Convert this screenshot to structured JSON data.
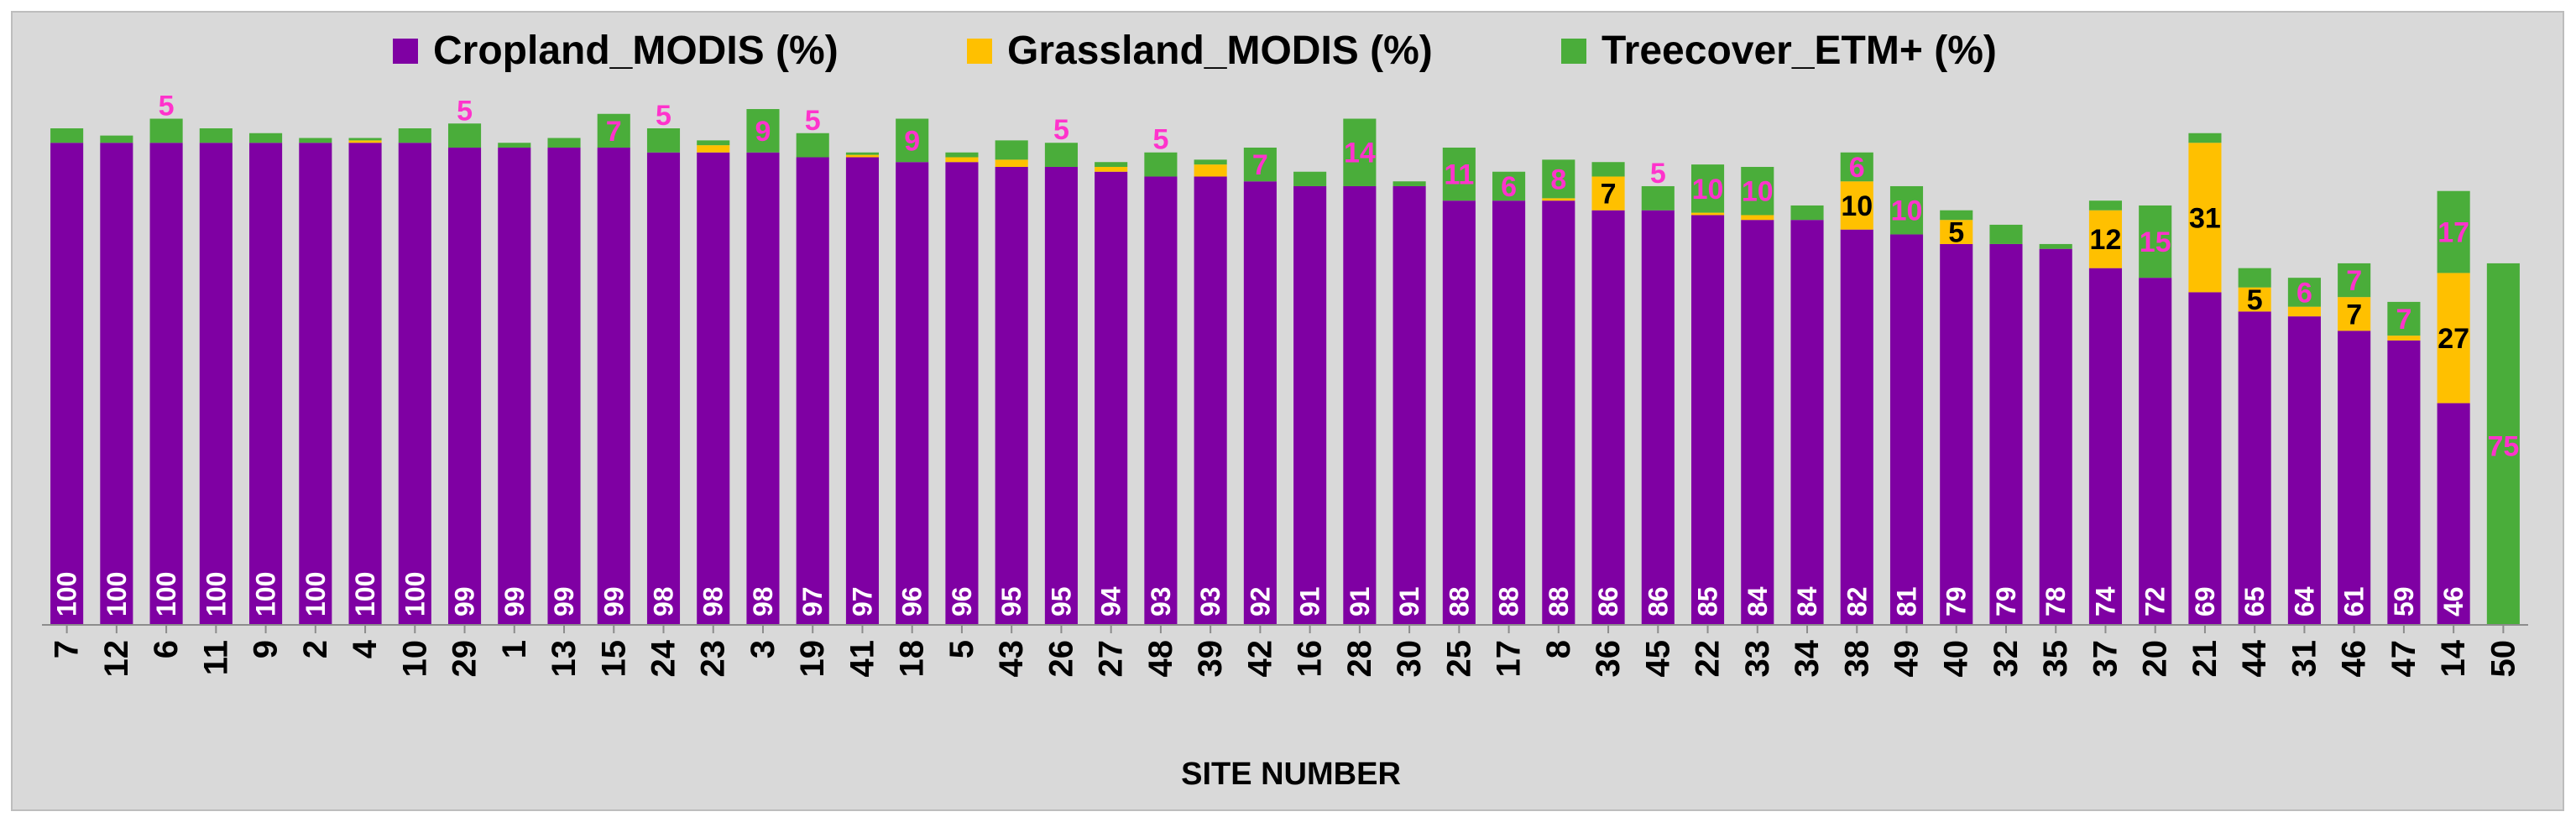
{
  "chart_data": {
    "type": "bar",
    "stacked": true,
    "title": "",
    "xlabel": "SITE NUMBER",
    "ylabel": "",
    "ylim": [
      0,
      103
    ],
    "grid": false,
    "legend_position": "top",
    "categories": [
      "7",
      "12",
      "6",
      "11",
      "9",
      "2",
      "4",
      "10",
      "29",
      "1",
      "13",
      "15",
      "24",
      "23",
      "3",
      "19",
      "41",
      "18",
      "5",
      "43",
      "26",
      "27",
      "48",
      "39",
      "42",
      "16",
      "28",
      "30",
      "25",
      "17",
      "8",
      "36",
      "45",
      "22",
      "33",
      "34",
      "38",
      "49",
      "40",
      "32",
      "35",
      "37",
      "20",
      "21",
      "44",
      "31",
      "46",
      "47",
      "14",
      "50"
    ],
    "series": [
      {
        "name": "Cropland_MODIS (%)",
        "color": "#7f00a3",
        "values": [
          100,
          100,
          100,
          100,
          100,
          100,
          100,
          100,
          99,
          99,
          99,
          99,
          98,
          98,
          98,
          97,
          97,
          96,
          96,
          95,
          95,
          94,
          93,
          93,
          92,
          91,
          91,
          91,
          88,
          88,
          88,
          86,
          86,
          85,
          84,
          84,
          82,
          81,
          79,
          79,
          78,
          74,
          72,
          69,
          65,
          64,
          61,
          59,
          46,
          0
        ],
        "labels": [
          "100",
          "100",
          "100",
          "100",
          "100",
          "100",
          "100",
          "100",
          "99",
          "99",
          "99",
          "99",
          "98",
          "98",
          "98",
          "97",
          "97",
          "96",
          "96",
          "95",
          "95",
          "94",
          "93",
          "93",
          "92",
          "91",
          "91",
          "91",
          "88",
          "88",
          "88",
          "86",
          "86",
          "85",
          "84",
          "84",
          "82",
          "81",
          "79",
          "79",
          "78",
          "74",
          "72",
          "69",
          "65",
          "64",
          "61",
          "59",
          "46",
          ""
        ]
      },
      {
        "name": "Grassland_MODIS (%)",
        "color": "#ffc000",
        "values": [
          0,
          0,
          0,
          0,
          0,
          0,
          0.5,
          0,
          0,
          0,
          0,
          0,
          0,
          1.5,
          0,
          0,
          0.5,
          0,
          1,
          1.5,
          0,
          1,
          0,
          2.5,
          0,
          0,
          0,
          0,
          0,
          0,
          0.5,
          7,
          0,
          0.5,
          1,
          0,
          10,
          0,
          5,
          0,
          0,
          12,
          0,
          31,
          5,
          2,
          7,
          1,
          27,
          0
        ],
        "labels": [
          "",
          "",
          "",
          "",
          "",
          "",
          "",
          "",
          "",
          "",
          "",
          "",
          "",
          "",
          "",
          "",
          "",
          "",
          "",
          "",
          "",
          "",
          "",
          "",
          "",
          "",
          "",
          "",
          "",
          "",
          "",
          "7",
          "",
          "",
          "",
          "",
          "10",
          "",
          "5",
          "",
          "",
          "12",
          "",
          "31",
          "5",
          "",
          "7",
          "",
          "27",
          ""
        ]
      },
      {
        "name": "Treecover_ETM+ (%)",
        "color": "#4aad3a",
        "values": [
          3,
          1.5,
          5,
          3,
          2,
          1,
          0.5,
          3,
          5,
          1,
          2,
          7,
          5,
          1,
          9,
          5,
          0.5,
          9,
          1,
          4,
          5,
          1,
          5,
          1,
          7,
          3,
          14,
          1,
          11,
          6,
          8,
          3,
          5,
          10,
          10,
          3,
          6,
          10,
          2,
          4,
          1,
          2,
          15,
          2,
          4,
          6,
          7,
          7,
          17,
          75
        ],
        "labels": [
          "",
          "",
          "5",
          "",
          "",
          "",
          "",
          "",
          "5",
          "",
          "",
          "7",
          "5",
          "",
          "9",
          "5",
          "",
          "9",
          "",
          "",
          "5",
          "",
          "5",
          "",
          "7",
          "",
          "14",
          "",
          "11",
          "6",
          "8",
          "",
          "5",
          "10",
          "10",
          "",
          "6",
          "10",
          "",
          "",
          "",
          "",
          "15",
          "",
          "",
          "6",
          "7",
          "7",
          "17",
          "75"
        ]
      }
    ]
  }
}
